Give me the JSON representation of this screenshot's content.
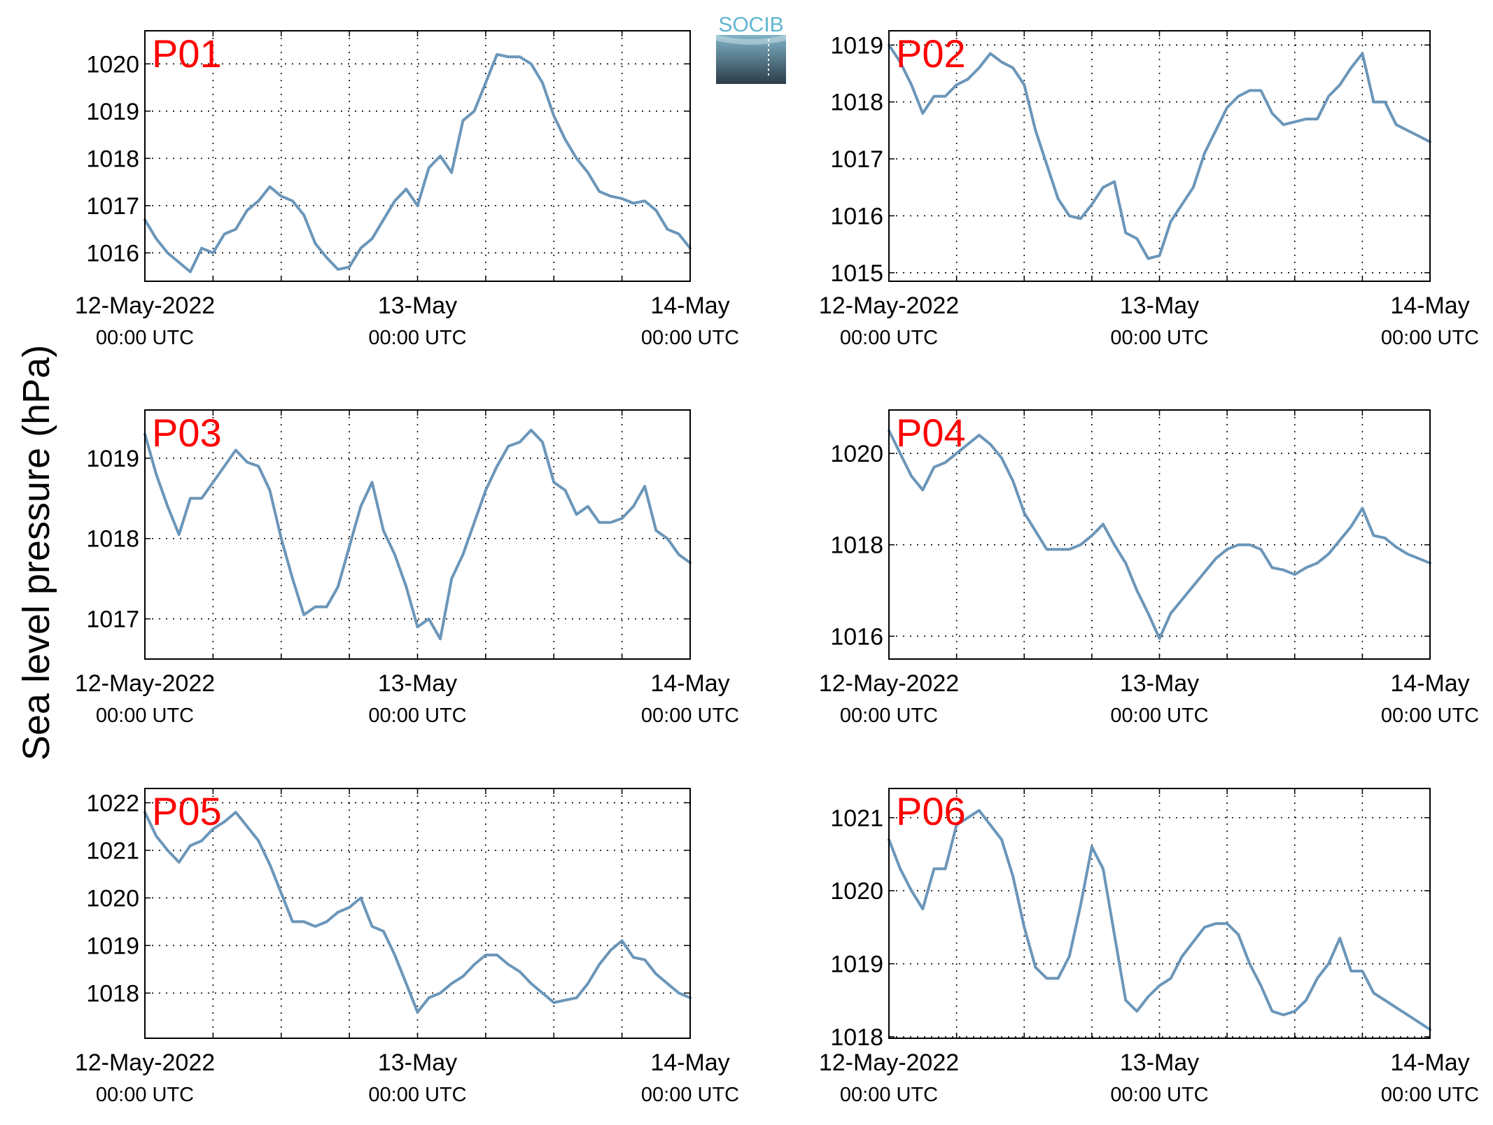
{
  "y_axis_label": "Sea level pressure (hPa)",
  "logo_text": "SOCIB",
  "colors": {
    "line": "#6b96b9",
    "station_label": "#ff0000",
    "axis": "#000000",
    "grid": "#000000"
  },
  "x_ticks": [
    {
      "date": "12-May-2022",
      "time": "00:00 UTC"
    },
    {
      "date": "13-May",
      "time": "00:00 UTC"
    },
    {
      "date": "14-May",
      "time": "00:00 UTC"
    }
  ],
  "chart_data": [
    {
      "type": "line",
      "title": "P01",
      "grid": true,
      "xlim": [
        "2022-05-12T00:00",
        "2022-05-14T00:00"
      ],
      "ylim": [
        1015.4,
        1020.7
      ],
      "yticks": [
        1016,
        1017,
        1018,
        1019,
        1020
      ],
      "x_hours": [
        0,
        1,
        2,
        3,
        4,
        5,
        6,
        7,
        8,
        9,
        10,
        11,
        12,
        13,
        14,
        15,
        16,
        17,
        18,
        19,
        20,
        21,
        22,
        23,
        24,
        25,
        26,
        27,
        28,
        29,
        30,
        31,
        32,
        33,
        34,
        35,
        36,
        37,
        38,
        39,
        40,
        41,
        42,
        43,
        44,
        45,
        46,
        47,
        48
      ],
      "values": [
        1016.7,
        1016.3,
        1016.0,
        1015.8,
        1015.6,
        1016.1,
        1016.0,
        1016.4,
        1016.5,
        1016.9,
        1017.1,
        1017.4,
        1017.2,
        1017.1,
        1016.8,
        1016.2,
        1015.9,
        1015.65,
        1015.7,
        1016.1,
        1016.3,
        1016.7,
        1017.1,
        1017.35,
        1017.0,
        1017.8,
        1018.05,
        1017.7,
        1018.8,
        1019.0,
        1019.6,
        1020.2,
        1020.15,
        1020.15,
        1020.0,
        1019.6,
        1018.9,
        1018.4,
        1018.0,
        1017.7,
        1017.3,
        1017.2,
        1017.15,
        1017.05,
        1017.1,
        1016.9,
        1016.5,
        1016.4,
        1016.1
      ]
    },
    {
      "type": "line",
      "title": "P02",
      "grid": true,
      "xlim": [
        "2022-05-12T00:00",
        "2022-05-14T00:00"
      ],
      "ylim": [
        1014.85,
        1019.25
      ],
      "yticks": [
        1015,
        1016,
        1017,
        1018,
        1019
      ],
      "x_hours": [
        0,
        1,
        2,
        3,
        4,
        5,
        6,
        7,
        8,
        9,
        10,
        11,
        12,
        13,
        14,
        15,
        16,
        17,
        18,
        19,
        20,
        21,
        22,
        23,
        24,
        25,
        26,
        27,
        28,
        29,
        30,
        31,
        32,
        33,
        34,
        35,
        36,
        37,
        38,
        39,
        40,
        41,
        42,
        43,
        44,
        45,
        46,
        47,
        48
      ],
      "values": [
        1019.0,
        1018.7,
        1018.3,
        1017.8,
        1018.1,
        1018.1,
        1018.3,
        1018.4,
        1018.6,
        1018.85,
        1018.7,
        1018.6,
        1018.3,
        1017.5,
        1016.9,
        1016.3,
        1016.0,
        1015.95,
        1016.2,
        1016.5,
        1016.6,
        1015.7,
        1015.6,
        1015.25,
        1015.3,
        1015.9,
        1016.2,
        1016.5,
        1017.1,
        1017.5,
        1017.9,
        1018.1,
        1018.2,
        1018.2,
        1017.8,
        1017.6,
        1017.65,
        1017.7,
        1017.7,
        1018.1,
        1018.3,
        1018.6,
        1018.85,
        1018.0,
        1018.0,
        1017.6,
        1017.5,
        1017.4,
        1017.3
      ]
    },
    {
      "type": "line",
      "title": "P03",
      "grid": true,
      "xlim": [
        "2022-05-12T00:00",
        "2022-05-14T00:00"
      ],
      "ylim": [
        1016.5,
        1019.6
      ],
      "yticks": [
        1017,
        1018,
        1019
      ],
      "x_hours": [
        0,
        1,
        2,
        3,
        4,
        5,
        6,
        7,
        8,
        9,
        10,
        11,
        12,
        13,
        14,
        15,
        16,
        17,
        18,
        19,
        20,
        21,
        22,
        23,
        24,
        25,
        26,
        27,
        28,
        29,
        30,
        31,
        32,
        33,
        34,
        35,
        36,
        37,
        38,
        39,
        40,
        41,
        42,
        43,
        44,
        45,
        46,
        47,
        48
      ],
      "values": [
        1019.3,
        1018.8,
        1018.4,
        1018.05,
        1018.5,
        1018.5,
        1018.7,
        1018.9,
        1019.1,
        1018.95,
        1018.9,
        1018.6,
        1018.0,
        1017.5,
        1017.05,
        1017.15,
        1017.15,
        1017.4,
        1017.9,
        1018.4,
        1018.7,
        1018.1,
        1017.8,
        1017.4,
        1016.9,
        1017.0,
        1016.75,
        1017.5,
        1017.8,
        1018.2,
        1018.6,
        1018.9,
        1019.15,
        1019.2,
        1019.35,
        1019.2,
        1018.7,
        1018.6,
        1018.3,
        1018.4,
        1018.2,
        1018.2,
        1018.25,
        1018.4,
        1018.65,
        1018.1,
        1018.0,
        1017.8,
        1017.7
      ]
    },
    {
      "type": "line",
      "title": "P04",
      "grid": true,
      "xlim": [
        "2022-05-12T00:00",
        "2022-05-14T00:00"
      ],
      "ylim": [
        1015.5,
        1020.95
      ],
      "yticks": [
        1016,
        1018,
        1020
      ],
      "x_hours": [
        0,
        1,
        2,
        3,
        4,
        5,
        6,
        7,
        8,
        9,
        10,
        11,
        12,
        13,
        14,
        15,
        16,
        17,
        18,
        19,
        20,
        21,
        22,
        23,
        24,
        25,
        26,
        27,
        28,
        29,
        30,
        31,
        32,
        33,
        34,
        35,
        36,
        37,
        38,
        39,
        40,
        41,
        42,
        43,
        44,
        45,
        46,
        47,
        48
      ],
      "values": [
        1020.5,
        1020.0,
        1019.5,
        1019.2,
        1019.7,
        1019.8,
        1020.0,
        1020.2,
        1020.4,
        1020.2,
        1019.9,
        1019.4,
        1018.7,
        1018.3,
        1017.9,
        1017.9,
        1017.9,
        1018.0,
        1018.2,
        1018.45,
        1018.0,
        1017.6,
        1017.0,
        1016.5,
        1015.95,
        1016.5,
        1016.8,
        1017.1,
        1017.4,
        1017.7,
        1017.9,
        1018.0,
        1018.0,
        1017.9,
        1017.5,
        1017.45,
        1017.35,
        1017.5,
        1017.6,
        1017.8,
        1018.1,
        1018.4,
        1018.8,
        1018.2,
        1018.15,
        1017.95,
        1017.8,
        1017.7,
        1017.6
      ]
    },
    {
      "type": "line",
      "title": "P05",
      "grid": true,
      "xlim": [
        "2022-05-12T00:00",
        "2022-05-14T00:00"
      ],
      "ylim": [
        1017.05,
        1022.3
      ],
      "yticks": [
        1018,
        1019,
        1020,
        1021,
        1022
      ],
      "x_hours": [
        0,
        1,
        2,
        3,
        4,
        5,
        6,
        7,
        8,
        9,
        10,
        11,
        12,
        13,
        14,
        15,
        16,
        17,
        18,
        19,
        20,
        21,
        22,
        23,
        24,
        25,
        26,
        27,
        28,
        29,
        30,
        31,
        32,
        33,
        34,
        35,
        36,
        37,
        38,
        39,
        40,
        41,
        42,
        43,
        44,
        45,
        46,
        47,
        48
      ],
      "values": [
        1021.8,
        1021.3,
        1021.0,
        1020.75,
        1021.1,
        1021.2,
        1021.45,
        1021.6,
        1021.8,
        1021.5,
        1021.2,
        1020.7,
        1020.1,
        1019.5,
        1019.5,
        1019.4,
        1019.5,
        1019.7,
        1019.8,
        1020.0,
        1019.4,
        1019.3,
        1018.8,
        1018.2,
        1017.6,
        1017.9,
        1018.0,
        1018.2,
        1018.35,
        1018.6,
        1018.8,
        1018.8,
        1018.6,
        1018.45,
        1018.2,
        1018.0,
        1017.8,
        1017.85,
        1017.9,
        1018.2,
        1018.6,
        1018.9,
        1019.1,
        1018.75,
        1018.7,
        1018.4,
        1018.2,
        1018.0,
        1017.9
      ]
    },
    {
      "type": "line",
      "title": "P06",
      "grid": true,
      "xlim": [
        "2022-05-12T00:00",
        "2022-05-14T00:00"
      ],
      "ylim": [
        1017.98,
        1021.4
      ],
      "yticks": [
        1018,
        1019,
        1020,
        1021
      ],
      "x_hours": [
        0,
        1,
        2,
        3,
        4,
        5,
        6,
        7,
        8,
        9,
        10,
        11,
        12,
        13,
        14,
        15,
        16,
        17,
        18,
        19,
        20,
        21,
        22,
        23,
        24,
        25,
        26,
        27,
        28,
        29,
        30,
        31,
        32,
        33,
        34,
        35,
        36,
        37,
        38,
        39,
        40,
        41,
        42,
        43,
        44,
        45,
        46,
        47,
        48
      ],
      "values": [
        1020.7,
        1020.3,
        1020.0,
        1019.75,
        1020.3,
        1020.3,
        1020.9,
        1021.0,
        1021.1,
        1020.9,
        1020.7,
        1020.2,
        1019.5,
        1018.95,
        1018.8,
        1018.8,
        1019.1,
        1019.8,
        1020.6,
        1020.3,
        1019.4,
        1018.5,
        1018.35,
        1018.55,
        1018.7,
        1018.8,
        1019.1,
        1019.3,
        1019.5,
        1019.55,
        1019.55,
        1019.4,
        1019.0,
        1018.7,
        1018.35,
        1018.3,
        1018.35,
        1018.5,
        1018.8,
        1019.0,
        1019.35,
        1018.9,
        1018.9,
        1018.6,
        1018.5,
        1018.4,
        1018.3,
        1018.2,
        1018.1
      ]
    }
  ]
}
